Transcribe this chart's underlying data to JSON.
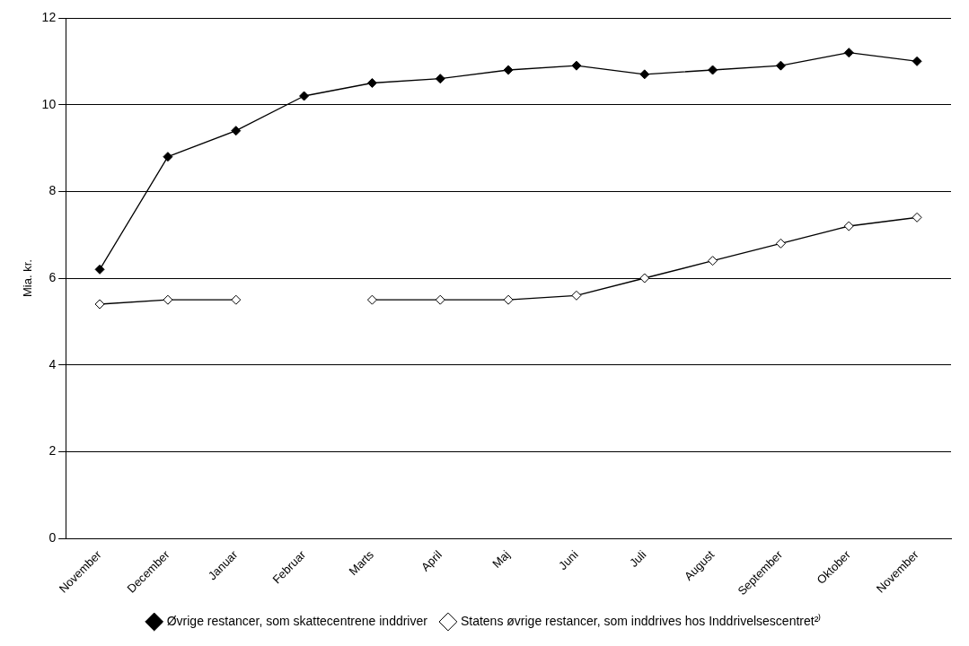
{
  "chart_data": {
    "type": "line",
    "ylabel": "Mia. kr.",
    "categories": [
      "November",
      "December",
      "Januar",
      "Februar",
      "Marts",
      "April",
      "Maj",
      "Juni",
      "Juli",
      "August",
      "September",
      "Oktober",
      "November"
    ],
    "series": [
      {
        "name": "Øvrige restancer, som skattecentrene inddriver",
        "color": "#000000",
        "values": [
          6.2,
          8.8,
          9.4,
          10.2,
          10.5,
          10.6,
          10.8,
          10.9,
          10.7,
          10.8,
          10.9,
          11.2,
          11.0
        ]
      },
      {
        "name": "Statens øvrige restancer, som inddrives hos Inddrivelsescentret²⁾",
        "color": "#000000",
        "values": [
          5.4,
          5.5,
          5.5,
          null,
          5.5,
          5.5,
          5.5,
          5.6,
          6.0,
          6.4,
          6.8,
          7.2,
          7.4
        ]
      }
    ],
    "ylim": [
      0,
      12
    ],
    "yticks": [
      0,
      2,
      4,
      6,
      8,
      10,
      12
    ],
    "grid": "y",
    "legend": "bottom",
    "marker": "diamond",
    "line_style": "solid"
  }
}
